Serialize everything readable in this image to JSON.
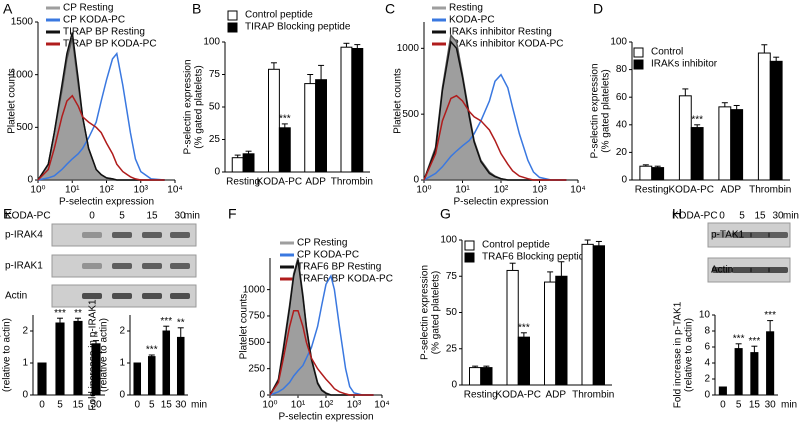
{
  "panel_labels": [
    "A",
    "B",
    "C",
    "D",
    "E",
    "F",
    "G",
    "H"
  ],
  "blots": [
    {
      "treatment": "KODA-PC",
      "lanes": [
        "0",
        "5",
        "15",
        "30"
      ],
      "unit": "min",
      "rows": [
        "p-IRAK4",
        "p-IRAK1",
        "Actin"
      ]
    },
    {
      "treatment": "KODA-PC",
      "lanes": [
        "0",
        "5",
        "15",
        "30"
      ],
      "unit": "min",
      "rows": [
        "p-TAK1",
        "Actin"
      ]
    }
  ],
  "chart_data": [
    {
      "type": "flow",
      "xscale": "log",
      "xlabel": "P-selectin expression",
      "ylabel": [
        "Platelet counts"
      ],
      "xlim": [
        1,
        10000
      ],
      "xticks": [
        {
          "value": 1,
          "label": "10⁰"
        },
        {
          "value": 10,
          "label": "10¹"
        },
        {
          "value": 100,
          "label": "10²"
        },
        {
          "value": 1000,
          "label": "10³"
        },
        {
          "value": 10000,
          "label": "10⁴"
        }
      ],
      "ylim": [
        0,
        1500
      ],
      "yticks": [
        0,
        500,
        1000,
        1500
      ],
      "x": [
        1,
        2,
        3,
        5,
        7,
        10,
        15,
        20,
        30,
        50,
        70,
        100,
        150,
        200,
        300,
        500,
        700,
        1000,
        2000,
        5000
      ],
      "series": [
        {
          "name": "CP Resting",
          "color": "#9e9e9e",
          "fill": true,
          "values": [
            0,
            150,
            450,
            850,
            1150,
            1350,
            900,
            600,
            300,
            100,
            50,
            20,
            10,
            0,
            0,
            0,
            0,
            0,
            0,
            0
          ]
        },
        {
          "name": "CP KODA-PC",
          "color": "#3a78e0",
          "values": [
            0,
            20,
            40,
            100,
            150,
            200,
            250,
            300,
            400,
            550,
            750,
            950,
            1150,
            1200,
            900,
            450,
            200,
            80,
            10,
            0
          ]
        },
        {
          "name": "TIRAP BP Resting",
          "color": "#111111",
          "values": [
            0,
            150,
            450,
            900,
            1200,
            1400,
            950,
            600,
            300,
            100,
            50,
            20,
            10,
            0,
            0,
            0,
            0,
            0,
            0,
            0
          ]
        },
        {
          "name": "TIRAP BP KODA-PC",
          "color": "#b01c1c",
          "values": [
            0,
            100,
            300,
            600,
            750,
            800,
            700,
            600,
            550,
            500,
            450,
            350,
            250,
            150,
            80,
            30,
            10,
            0,
            0,
            0
          ]
        }
      ]
    },
    {
      "type": "bar",
      "ylabel": [
        "P-selectin expression",
        "(% gated platelets)"
      ],
      "ylim": [
        0,
        100
      ],
      "yticks": [
        0,
        25,
        50,
        75,
        100
      ],
      "categories": [
        "Resting",
        "KODA-PC",
        "ADP",
        "Thrombin"
      ],
      "series": [
        {
          "name": "Control peptide",
          "color": "#ffffff",
          "values": [
            11,
            79,
            68,
            96
          ],
          "errors": [
            2,
            5,
            7,
            3
          ],
          "significance": [
            null,
            null,
            null,
            null
          ]
        },
        {
          "name": "TIRAP Blocking peptide",
          "color": "#000000",
          "values": [
            14,
            34,
            71,
            95
          ],
          "errors": [
            2,
            3,
            11,
            3
          ],
          "significance": [
            null,
            "***",
            null,
            null
          ]
        }
      ]
    },
    {
      "type": "flow",
      "xscale": "log",
      "xlabel": "P-selectin expression",
      "ylabel": [
        "Platelet counts"
      ],
      "xlim": [
        1,
        10000
      ],
      "xticks": [
        {
          "value": 1,
          "label": "10⁰"
        },
        {
          "value": 10,
          "label": "10¹"
        },
        {
          "value": 100,
          "label": "10²"
        },
        {
          "value": 1000,
          "label": "10³"
        },
        {
          "value": 10000,
          "label": "10⁴"
        }
      ],
      "ylim": [
        0,
        1200
      ],
      "yticks": [
        0,
        500,
        1000
      ],
      "x": [
        1,
        2,
        3,
        5,
        7,
        10,
        15,
        20,
        30,
        50,
        70,
        100,
        150,
        200,
        300,
        500,
        700,
        1000,
        2000,
        5000
      ],
      "series": [
        {
          "name": "Resting",
          "color": "#9e9e9e",
          "fill": true,
          "values": [
            0,
            250,
            700,
            1100,
            1050,
            800,
            500,
            300,
            150,
            60,
            30,
            10,
            0,
            0,
            0,
            0,
            0,
            0,
            0,
            0
          ]
        },
        {
          "name": "KODA-PC",
          "color": "#3a78e0",
          "values": [
            0,
            50,
            100,
            180,
            220,
            260,
            300,
            350,
            450,
            600,
            750,
            800,
            700,
            550,
            350,
            150,
            60,
            20,
            0,
            0
          ]
        },
        {
          "name": "IRAKs inhibitor Resting",
          "color": "#111111",
          "values": [
            0,
            230,
            680,
            1050,
            1000,
            780,
            480,
            290,
            140,
            50,
            25,
            10,
            0,
            0,
            0,
            0,
            0,
            0,
            0,
            0
          ]
        },
        {
          "name": "IRAKs inhibitor KODA-PC",
          "color": "#b01c1c",
          "values": [
            0,
            200,
            450,
            620,
            640,
            600,
            520,
            480,
            450,
            380,
            300,
            200,
            120,
            70,
            30,
            10,
            0,
            0,
            0,
            0
          ]
        }
      ]
    },
    {
      "type": "bar",
      "ylabel": [
        "P-selectin expression",
        "(% gated platelets)"
      ],
      "ylim": [
        0,
        100
      ],
      "yticks": [
        0,
        20,
        40,
        60,
        80,
        100
      ],
      "categories": [
        "Resting",
        "KODA-PC",
        "ADP",
        "Thrombin"
      ],
      "series": [
        {
          "name": "Control",
          "color": "#ffffff",
          "values": [
            10,
            61,
            53,
            92
          ],
          "errors": [
            1,
            5,
            3,
            6
          ],
          "significance": [
            null,
            null,
            null,
            null
          ]
        },
        {
          "name": "IRAKs inhibitor",
          "color": "#000000",
          "values": [
            9,
            38,
            51,
            86
          ],
          "errors": [
            1,
            2,
            3,
            3
          ],
          "significance": [
            null,
            "***",
            null,
            null
          ]
        }
      ]
    },
    {
      "type": "bar",
      "ylabel": [
        "Fold increase in p-IRAK4",
        "(relative to actin)"
      ],
      "ylim": [
        0,
        2.5
      ],
      "yticks": [
        0,
        1,
        2
      ],
      "categories": [
        "0",
        "5",
        "15",
        "30"
      ],
      "series": [
        {
          "color": "#000000",
          "values": [
            1,
            2.25,
            2.3,
            1.6
          ],
          "errors": [
            0,
            0.15,
            0.1,
            0.1
          ],
          "significance": [
            null,
            "***",
            "**",
            "*"
          ]
        }
      ]
    },
    {
      "type": "bar",
      "ylabel": [
        "Fold increase in p-IRAK1",
        "(relative to actin)"
      ],
      "xlabel": "min",
      "ylim": [
        0,
        2.5
      ],
      "yticks": [
        0,
        1,
        2
      ],
      "categories": [
        "0",
        "5",
        "15",
        "30"
      ],
      "series": [
        {
          "color": "#000000",
          "values": [
            1,
            1.2,
            2.0,
            1.8
          ],
          "errors": [
            0,
            0.05,
            0.15,
            0.3
          ],
          "significance": [
            null,
            "***",
            "***",
            "**"
          ]
        }
      ]
    },
    {
      "type": "flow",
      "xscale": "log",
      "xlabel": "P-selectin expression",
      "ylabel": [
        "Platelet counts"
      ],
      "xlim": [
        1,
        10000
      ],
      "xticks": [
        {
          "value": 1,
          "label": "10⁰"
        },
        {
          "value": 10,
          "label": "10¹"
        },
        {
          "value": 100,
          "label": "10²"
        },
        {
          "value": 1000,
          "label": "10³"
        },
        {
          "value": 10000,
          "label": "10⁴"
        }
      ],
      "ylim": [
        0,
        1300
      ],
      "yticks": [
        0,
        250,
        500,
        750,
        1000
      ],
      "x": [
        1,
        2,
        3,
        5,
        7,
        10,
        15,
        20,
        30,
        50,
        70,
        100,
        150,
        200,
        300,
        500,
        700,
        1000,
        2000,
        5000
      ],
      "series": [
        {
          "name": "CP Resting",
          "color": "#9e9e9e",
          "fill": true,
          "values": [
            0,
            150,
            450,
            850,
            1150,
            1300,
            950,
            650,
            350,
            120,
            50,
            20,
            0,
            0,
            0,
            0,
            0,
            0,
            0,
            0
          ]
        },
        {
          "name": "CP KODA-PC",
          "color": "#3a78e0",
          "values": [
            0,
            30,
            60,
            120,
            180,
            230,
            280,
            350,
            450,
            650,
            850,
            1050,
            1130,
            1000,
            650,
            250,
            80,
            20,
            0,
            0
          ]
        },
        {
          "name": "TRAF6 BP Resting",
          "color": "#111111",
          "values": [
            0,
            140,
            430,
            830,
            1130,
            1280,
            930,
            640,
            340,
            110,
            45,
            15,
            0,
            0,
            0,
            0,
            0,
            0,
            0,
            0
          ]
        },
        {
          "name": "TRAF6 BP KODA-PC",
          "color": "#b01c1c",
          "values": [
            0,
            120,
            350,
            650,
            800,
            800,
            650,
            500,
            350,
            250,
            200,
            150,
            100,
            60,
            30,
            10,
            0,
            0,
            0,
            0
          ]
        }
      ]
    },
    {
      "type": "bar",
      "ylabel": [
        "P-selectin expression",
        "(% gated platelets)"
      ],
      "ylim": [
        0,
        100
      ],
      "yticks": [
        0,
        25,
        50,
        75,
        100
      ],
      "categories": [
        "Resting",
        "KODA-PC",
        "ADP",
        "Thrombin"
      ],
      "series": [
        {
          "name": "Control peptide",
          "color": "#ffffff",
          "values": [
            12,
            79,
            71,
            97
          ],
          "errors": [
            1,
            5,
            7,
            3
          ],
          "significance": [
            null,
            null,
            null,
            null
          ]
        },
        {
          "name": "TRAF6 Blocking peptide",
          "color": "#000000",
          "values": [
            12,
            33,
            75,
            96
          ],
          "errors": [
            1,
            3,
            10,
            3
          ],
          "significance": [
            null,
            "***",
            null,
            null
          ]
        }
      ]
    },
    {
      "type": "bar",
      "ylabel": [
        "Fold increase in p-TAK1",
        "(relative to actin)"
      ],
      "xlabel": "min",
      "ylim": [
        0,
        10
      ],
      "yticks": [
        0,
        2,
        4,
        6,
        8,
        10
      ],
      "categories": [
        "0",
        "5",
        "15",
        "30"
      ],
      "series": [
        {
          "color": "#000000",
          "values": [
            1,
            5.8,
            5.3,
            7.9
          ],
          "errors": [
            0,
            0.6,
            0.8,
            1.4
          ],
          "significance": [
            null,
            "***",
            "***",
            "***"
          ]
        }
      ]
    }
  ]
}
